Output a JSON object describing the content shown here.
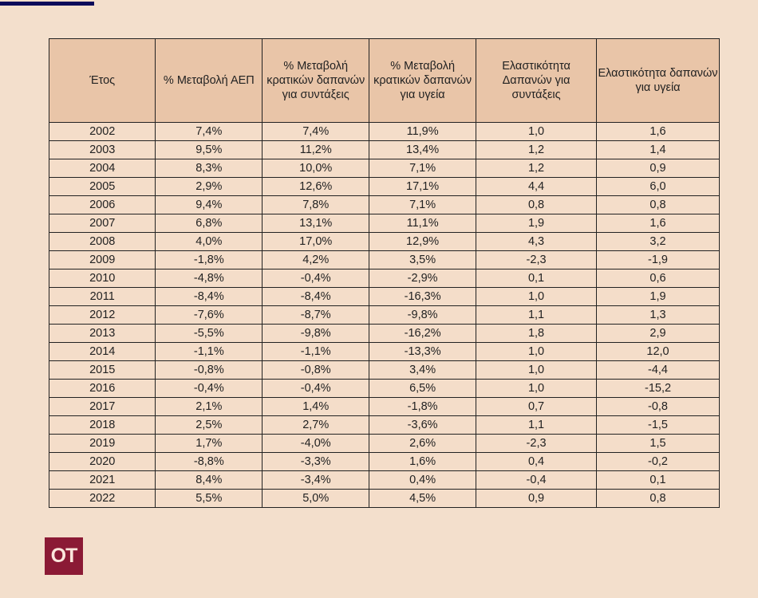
{
  "table": {
    "headers": [
      "Έτος",
      "% Μεταβολή ΑΕΠ",
      "% Μεταβολή κρατικών δαπανών για συντάξεις",
      "% Μεταβολή κρατικών δαπανών για υγεία",
      "Ελαστικότητα Δαπανών για συντάξεις",
      "Ελαστικότητα δαπανών για υγεία"
    ],
    "rows": [
      [
        "2002",
        "7,4%",
        "7,4%",
        "11,9%",
        "1,0",
        "1,6"
      ],
      [
        "2003",
        "9,5%",
        "11,2%",
        "13,4%",
        "1,2",
        "1,4"
      ],
      [
        "2004",
        "8,3%",
        "10,0%",
        "7,1%",
        "1,2",
        "0,9"
      ],
      [
        "2005",
        "2,9%",
        "12,6%",
        "17,1%",
        "4,4",
        "6,0"
      ],
      [
        "2006",
        "9,4%",
        "7,8%",
        "7,1%",
        "0,8",
        "0,8"
      ],
      [
        "2007",
        "6,8%",
        "13,1%",
        "11,1%",
        "1,9",
        "1,6"
      ],
      [
        "2008",
        "4,0%",
        "17,0%",
        "12,9%",
        "4,3",
        "3,2"
      ],
      [
        "2009",
        "-1,8%",
        "4,2%",
        "3,5%",
        "-2,3",
        "-1,9"
      ],
      [
        "2010",
        "-4,8%",
        "-0,4%",
        "-2,9%",
        "0,1",
        "0,6"
      ],
      [
        "2011",
        "-8,4%",
        "-8,4%",
        "-16,3%",
        "1,0",
        "1,9"
      ],
      [
        "2012",
        "-7,6%",
        "-8,7%",
        "-9,8%",
        "1,1",
        "1,3"
      ],
      [
        "2013",
        "-5,5%",
        "-9,8%",
        "-16,2%",
        "1,8",
        "2,9"
      ],
      [
        "2014",
        "-1,1%",
        "-1,1%",
        "-13,3%",
        "1,0",
        "12,0"
      ],
      [
        "2015",
        "-0,8%",
        "-0,8%",
        "3,4%",
        "1,0",
        "-4,4"
      ],
      [
        "2016",
        "-0,4%",
        "-0,4%",
        "6,5%",
        "1,0",
        "-15,2"
      ],
      [
        "2017",
        "2,1%",
        "1,4%",
        "-1,8%",
        "0,7",
        "-0,8"
      ],
      [
        "2018",
        "2,5%",
        "2,7%",
        "-3,6%",
        "1,1",
        "-1,5"
      ],
      [
        "2019",
        "1,7%",
        "-4,0%",
        "2,6%",
        "-2,3",
        "1,5"
      ],
      [
        "2020",
        "-8,8%",
        "-3,3%",
        "1,6%",
        "0,4",
        "-0,2"
      ],
      [
        "2021",
        "8,4%",
        "-3,4%",
        "0,4%",
        "-0,4",
        "0,1"
      ],
      [
        "2022",
        "5,5%",
        "5,0%",
        "4,5%",
        "0,9",
        "0,8"
      ]
    ]
  },
  "logo": {
    "text": "OT",
    "color": "#8b1a35"
  },
  "colors": {
    "background": "#f3dfcc",
    "header": "#e9c5a8",
    "accent_bar": "#0a0a5a"
  }
}
